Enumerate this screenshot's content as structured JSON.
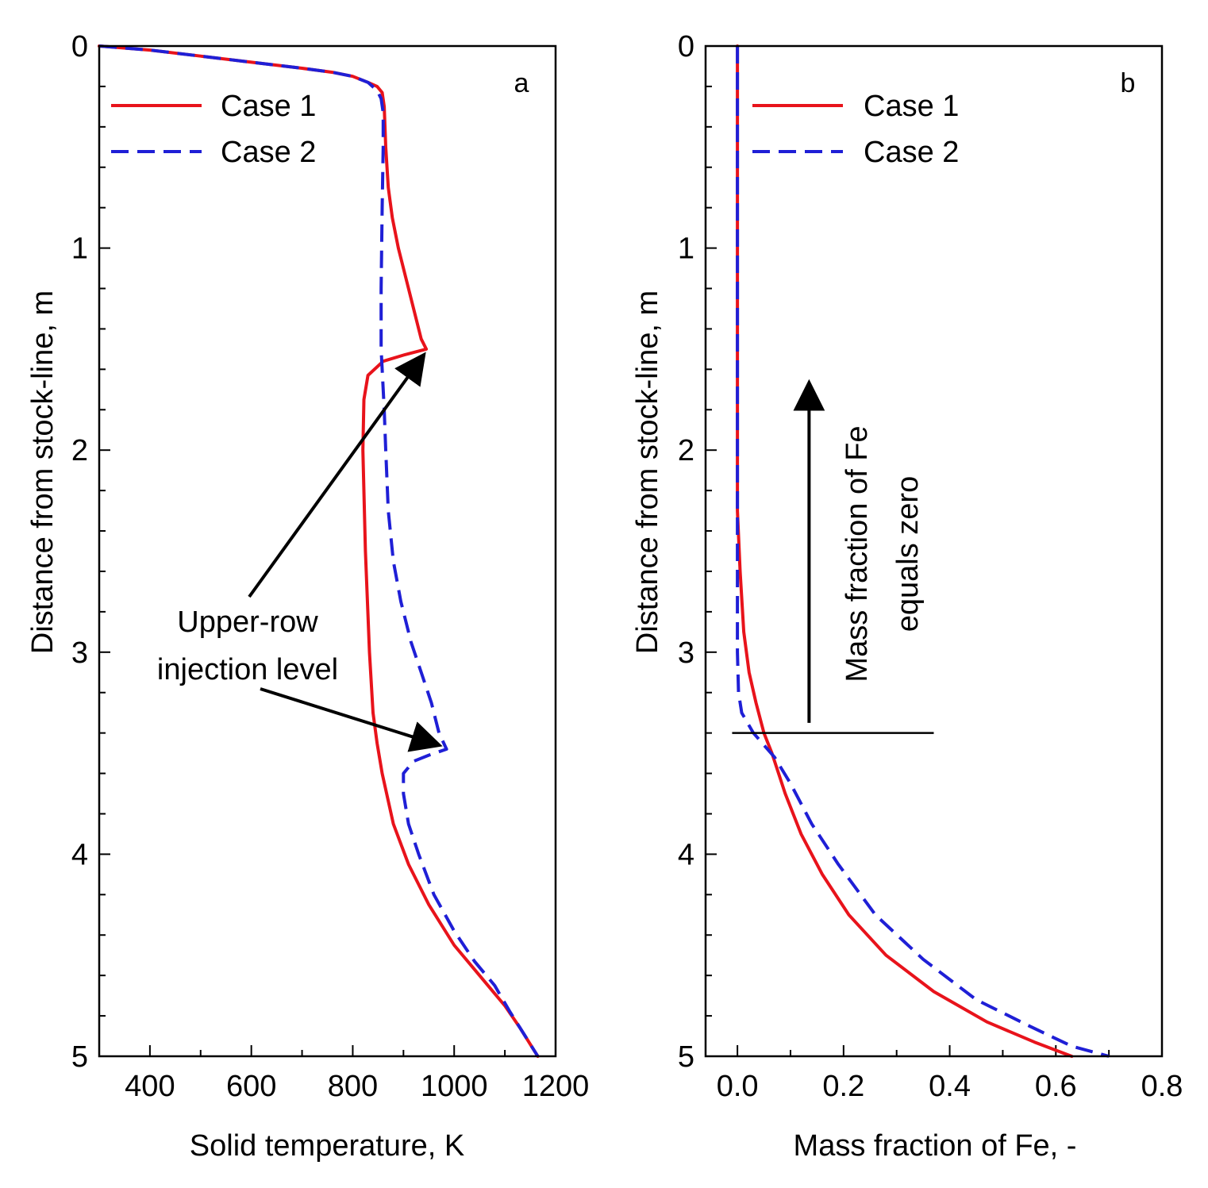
{
  "chart_data": [
    {
      "type": "line",
      "panel": "a",
      "xlabel": "Solid temperature, K",
      "ylabel": "Distance from stock-line, m",
      "xlim": [
        300,
        1200
      ],
      "ylim": [
        5,
        0
      ],
      "x_ticks": [
        400,
        600,
        800,
        1000,
        1200
      ],
      "y_ticks": [
        0,
        1,
        2,
        3,
        4,
        5
      ],
      "legend": [
        "Case 1",
        "Case 2"
      ],
      "legend_position": "top-left",
      "annotation": {
        "line1": "Upper-row",
        "line2": "injection level"
      },
      "series": [
        {
          "name": "Case 1",
          "color": "#e8131b",
          "style": "solid",
          "points": [
            [
              300,
              0
            ],
            [
              400,
              0.02
            ],
            [
              500,
              0.05
            ],
            [
              600,
              0.08
            ],
            [
              700,
              0.11
            ],
            [
              760,
              0.13
            ],
            [
              800,
              0.15
            ],
            [
              830,
              0.18
            ],
            [
              848,
              0.2
            ],
            [
              858,
              0.23
            ],
            [
              862,
              0.3
            ],
            [
              865,
              0.5
            ],
            [
              870,
              0.7
            ],
            [
              878,
              0.85
            ],
            [
              890,
              1.0
            ],
            [
              905,
              1.15
            ],
            [
              920,
              1.3
            ],
            [
              935,
              1.45
            ],
            [
              945,
              1.5
            ],
            [
              900,
              1.53
            ],
            [
              860,
              1.56
            ],
            [
              830,
              1.63
            ],
            [
              822,
              1.75
            ],
            [
              820,
              2.0
            ],
            [
              825,
              2.5
            ],
            [
              833,
              3.0
            ],
            [
              840,
              3.3
            ],
            [
              848,
              3.45
            ],
            [
              858,
              3.6
            ],
            [
              880,
              3.85
            ],
            [
              910,
              4.05
            ],
            [
              950,
              4.25
            ],
            [
              1000,
              4.45
            ],
            [
              1050,
              4.6
            ],
            [
              1100,
              4.75
            ],
            [
              1130,
              4.86
            ],
            [
              1160,
              4.98
            ],
            [
              1165,
              5.0
            ]
          ]
        },
        {
          "name": "Case 2",
          "color": "#1f1fd6",
          "style": "dashed",
          "points": [
            [
              300,
              0
            ],
            [
              400,
              0.02
            ],
            [
              500,
              0.05
            ],
            [
              600,
              0.08
            ],
            [
              700,
              0.11
            ],
            [
              760,
              0.13
            ],
            [
              800,
              0.15
            ],
            [
              830,
              0.18
            ],
            [
              848,
              0.22
            ],
            [
              856,
              0.26
            ],
            [
              860,
              0.33
            ],
            [
              860,
              0.5
            ],
            [
              858,
              0.8
            ],
            [
              856,
              1.2
            ],
            [
              856,
              1.5
            ],
            [
              858,
              1.6
            ],
            [
              862,
              1.8
            ],
            [
              865,
              2.0
            ],
            [
              870,
              2.3
            ],
            [
              880,
              2.55
            ],
            [
              895,
              2.75
            ],
            [
              915,
              2.95
            ],
            [
              935,
              3.1
            ],
            [
              955,
              3.25
            ],
            [
              970,
              3.4
            ],
            [
              985,
              3.48
            ],
            [
              950,
              3.51
            ],
            [
              920,
              3.54
            ],
            [
              900,
              3.6
            ],
            [
              900,
              3.7
            ],
            [
              910,
              3.85
            ],
            [
              930,
              4.0
            ],
            [
              960,
              4.2
            ],
            [
              1000,
              4.38
            ],
            [
              1040,
              4.53
            ],
            [
              1080,
              4.65
            ],
            [
              1110,
              4.78
            ],
            [
              1140,
              4.9
            ],
            [
              1165,
              5.0
            ]
          ]
        }
      ]
    },
    {
      "type": "line",
      "panel": "b",
      "xlabel": "Mass fraction of Fe, -",
      "ylabel": "Distance from stock-line, m",
      "xlim": [
        -0.06,
        0.8
      ],
      "ylim": [
        5,
        0
      ],
      "x_ticks": [
        "0.0",
        "0.2",
        "0.4",
        "0.6",
        "0.8"
      ],
      "y_ticks": [
        0,
        1,
        2,
        3,
        4,
        5
      ],
      "legend": [
        "Case 1",
        "Case 2"
      ],
      "legend_position": "top-left",
      "annotation": {
        "line1": "Mass fraction of Fe",
        "line2": "equals zero"
      },
      "series": [
        {
          "name": "Case 1",
          "color": "#e8131b",
          "style": "solid",
          "points": [
            [
              0,
              0
            ],
            [
              0,
              2.3
            ],
            [
              0.005,
              2.6
            ],
            [
              0.012,
              2.9
            ],
            [
              0.022,
              3.1
            ],
            [
              0.035,
              3.25
            ],
            [
              0.05,
              3.4
            ],
            [
              0.065,
              3.5
            ],
            [
              0.09,
              3.7
            ],
            [
              0.12,
              3.9
            ],
            [
              0.16,
              4.1
            ],
            [
              0.21,
              4.3
            ],
            [
              0.28,
              4.5
            ],
            [
              0.37,
              4.68
            ],
            [
              0.47,
              4.83
            ],
            [
              0.56,
              4.93
            ],
            [
              0.63,
              5.0
            ]
          ]
        },
        {
          "name": "Case 2",
          "color": "#1f1fd6",
          "style": "dashed",
          "points": [
            [
              0,
              0
            ],
            [
              0,
              3.0
            ],
            [
              0.002,
              3.2
            ],
            [
              0.008,
              3.3
            ],
            [
              0.03,
              3.4
            ],
            [
              0.07,
              3.52
            ],
            [
              0.1,
              3.65
            ],
            [
              0.14,
              3.85
            ],
            [
              0.19,
              4.05
            ],
            [
              0.26,
              4.3
            ],
            [
              0.35,
              4.52
            ],
            [
              0.45,
              4.72
            ],
            [
              0.55,
              4.85
            ],
            [
              0.63,
              4.95
            ],
            [
              0.7,
              5.0
            ]
          ]
        }
      ],
      "threshold": {
        "y": 3.4,
        "x_range": [
          -0.01,
          0.37
        ]
      },
      "arrow": {
        "x": 0.135,
        "y_from": 3.35,
        "y_to": 1.68
      }
    }
  ],
  "panel_a": {
    "tag": "a",
    "xlabel": "Solid temperature, K",
    "ylabel": "Distance from stock-line, m",
    "legend_case1": "Case 1",
    "legend_case2": "Case 2",
    "annotation_line1": "Upper-row",
    "annotation_line2": "injection level"
  },
  "panel_b": {
    "tag": "b",
    "xlabel": "Mass fraction of Fe, -",
    "ylabel": "Distance from stock-line, m",
    "legend_case1": "Case 1",
    "legend_case2": "Case 2",
    "annotation_line1": "Mass fraction of Fe",
    "annotation_line2": "equals zero"
  },
  "colors": {
    "case1": "#e8131b",
    "case2": "#1f1fd6",
    "axis": "#000000"
  }
}
